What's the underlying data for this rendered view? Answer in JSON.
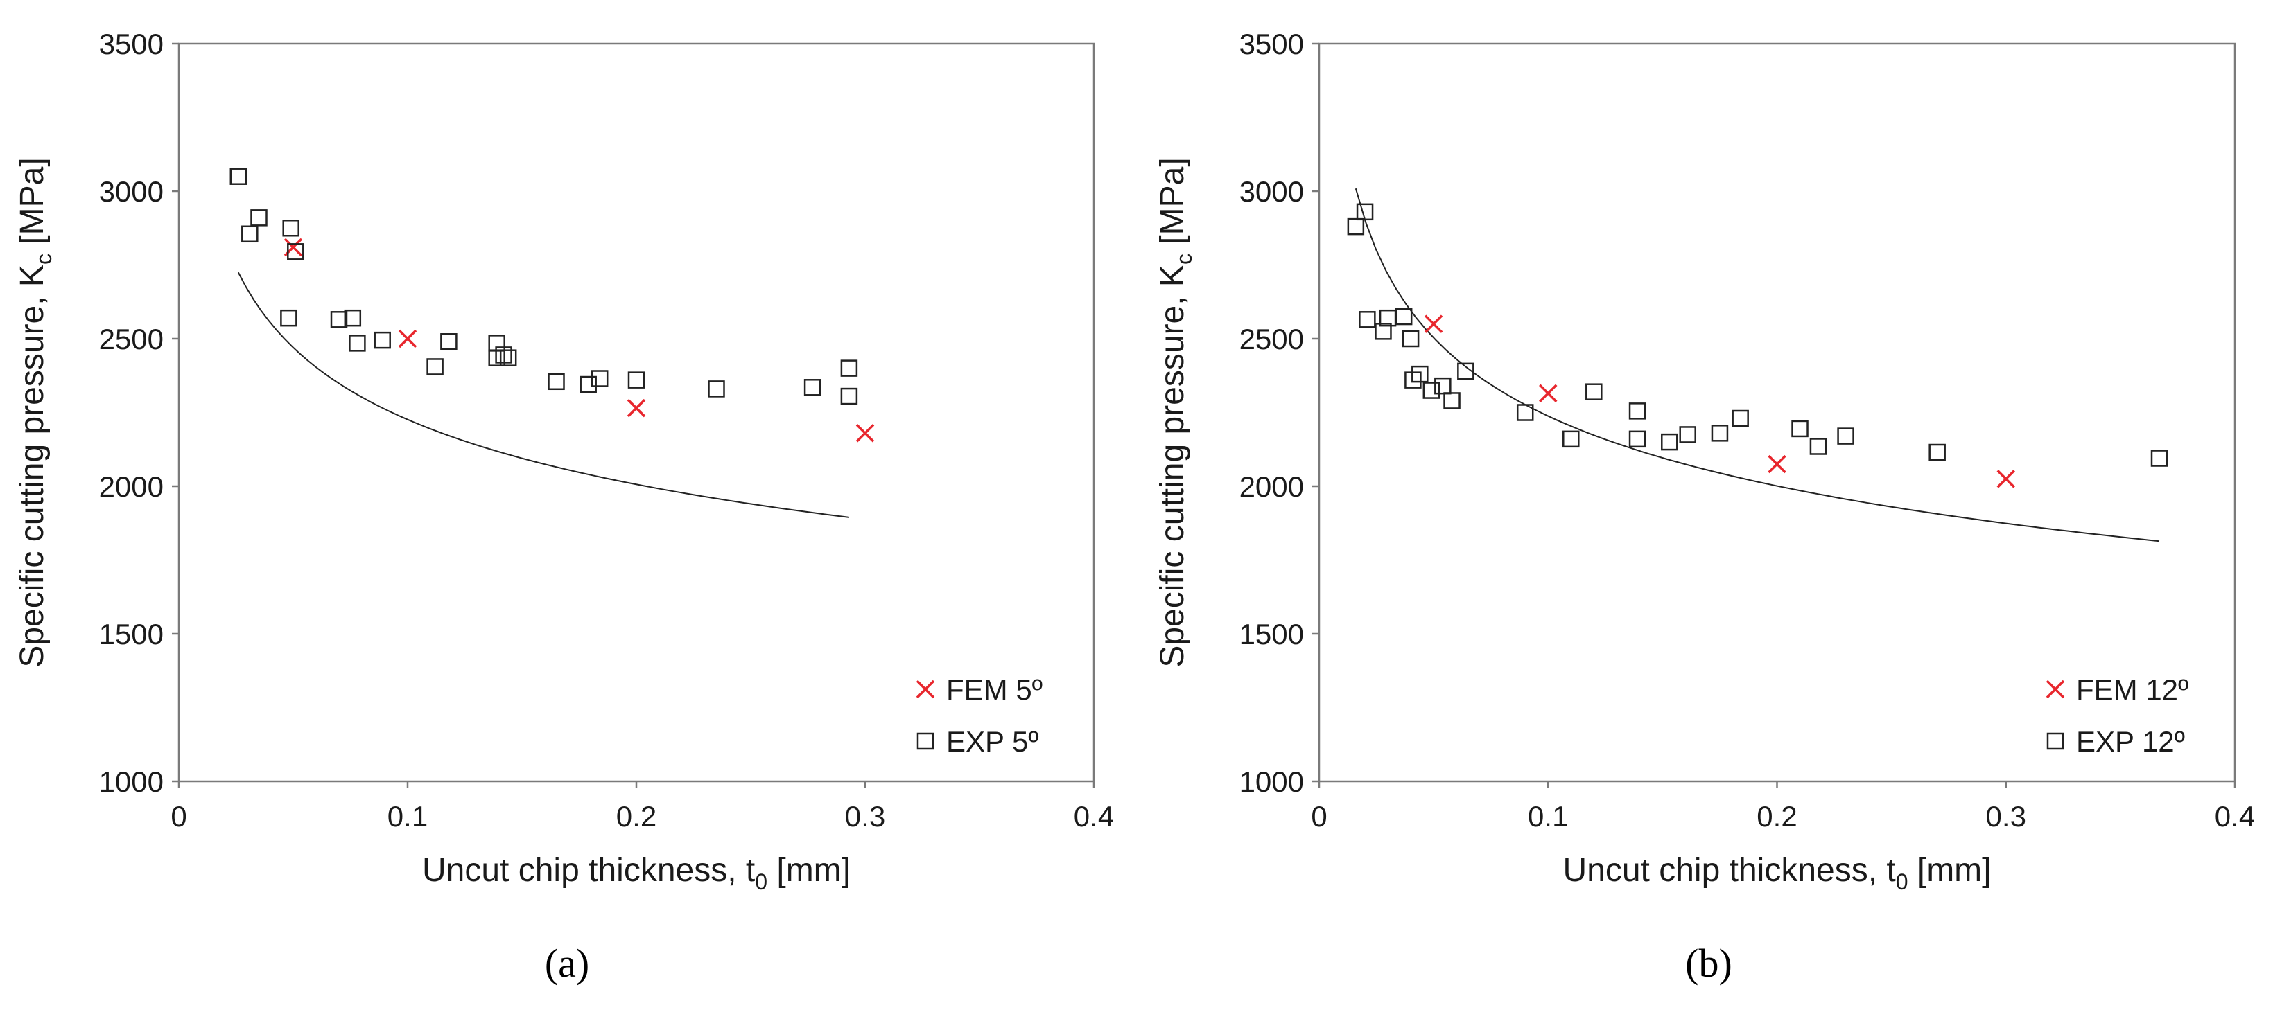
{
  "chart_data": [
    {
      "type": "scatter",
      "panel_label": "(a)",
      "xlabel": {
        "main": "Uncut chip thickness, t",
        "sub": "0",
        "unit": " [mm]"
      },
      "ylabel": {
        "main": "Specific cutting pressure, K",
        "sub": "c",
        "unit": " [MPa]"
      },
      "xlim": [
        0,
        0.4
      ],
      "ylim": [
        1000,
        3500
      ],
      "x_ticks": [
        "0",
        "0.1",
        "0.2",
        "0.3",
        "0.4"
      ],
      "y_ticks": [
        "1000",
        "1500",
        "2000",
        "2500",
        "3000",
        "3500"
      ],
      "legend_position": "bottom-right",
      "series": [
        {
          "name": "FEM 5º",
          "marker": "x",
          "color": "#e8262d",
          "points": [
            [
              0.05,
              2810
            ],
            [
              0.1,
              2500
            ],
            [
              0.2,
              2265
            ],
            [
              0.3,
              2180
            ]
          ]
        },
        {
          "name": "EXP 5º",
          "marker": "square",
          "color": "#222222",
          "points": [
            [
              0.026,
              3050
            ],
            [
              0.031,
              2855
            ],
            [
              0.035,
              2910
            ],
            [
              0.048,
              2570
            ],
            [
              0.049,
              2875
            ],
            [
              0.051,
              2795
            ],
            [
              0.07,
              2565
            ],
            [
              0.076,
              2570
            ],
            [
              0.078,
              2485
            ],
            [
              0.089,
              2495
            ],
            [
              0.112,
              2405
            ],
            [
              0.118,
              2490
            ],
            [
              0.139,
              2435
            ],
            [
              0.139,
              2485
            ],
            [
              0.142,
              2445
            ],
            [
              0.144,
              2435
            ],
            [
              0.165,
              2355
            ],
            [
              0.179,
              2345
            ],
            [
              0.184,
              2365
            ],
            [
              0.2,
              2360
            ],
            [
              0.235,
              2330
            ],
            [
              0.277,
              2335
            ],
            [
              0.293,
              2400
            ],
            [
              0.293,
              2305
            ]
          ]
        }
      ],
      "trendline": {
        "type": "power",
        "a": 1576,
        "b": -0.15,
        "x_range": [
          0.026,
          0.293
        ]
      }
    },
    {
      "type": "scatter",
      "panel_label": "(b)",
      "xlabel": {
        "main": "Uncut chip thickness, t",
        "sub": "0",
        "unit": " [mm]"
      },
      "ylabel": {
        "main": "Specific cutting pressure, K",
        "sub": "c",
        "unit": " [MPa]"
      },
      "xlim": [
        0,
        0.4
      ],
      "ylim": [
        1000,
        3500
      ],
      "x_ticks": [
        "0",
        "0.1",
        "0.2",
        "0.3",
        "0.4"
      ],
      "y_ticks": [
        "1000",
        "1500",
        "2000",
        "2500",
        "3000",
        "3500"
      ],
      "legend_position": "bottom-right",
      "series": [
        {
          "name": "FEM 12º",
          "marker": "x",
          "color": "#e8262d",
          "points": [
            [
              0.05,
              2550
            ],
            [
              0.1,
              2315
            ],
            [
              0.2,
              2075
            ],
            [
              0.3,
              2025
            ]
          ]
        },
        {
          "name": "EXP 12º",
          "marker": "square",
          "color": "#222222",
          "points": [
            [
              0.016,
              2880
            ],
            [
              0.02,
              2930
            ],
            [
              0.021,
              2565
            ],
            [
              0.028,
              2525
            ],
            [
              0.03,
              2570
            ],
            [
              0.037,
              2575
            ],
            [
              0.04,
              2500
            ],
            [
              0.041,
              2360
            ],
            [
              0.044,
              2380
            ],
            [
              0.049,
              2325
            ],
            [
              0.054,
              2340
            ],
            [
              0.058,
              2290
            ],
            [
              0.064,
              2390
            ],
            [
              0.09,
              2250
            ],
            [
              0.11,
              2160
            ],
            [
              0.12,
              2320
            ],
            [
              0.139,
              2255
            ],
            [
              0.139,
              2160
            ],
            [
              0.153,
              2150
            ],
            [
              0.161,
              2175
            ],
            [
              0.175,
              2180
            ],
            [
              0.184,
              2230
            ],
            [
              0.21,
              2195
            ],
            [
              0.218,
              2135
            ],
            [
              0.23,
              2170
            ],
            [
              0.27,
              2115
            ],
            [
              0.367,
              2095
            ]
          ]
        }
      ],
      "trendline": {
        "type": "power",
        "a": 1543,
        "b": -0.1615,
        "x_range": [
          0.016,
          0.367
        ]
      }
    }
  ]
}
